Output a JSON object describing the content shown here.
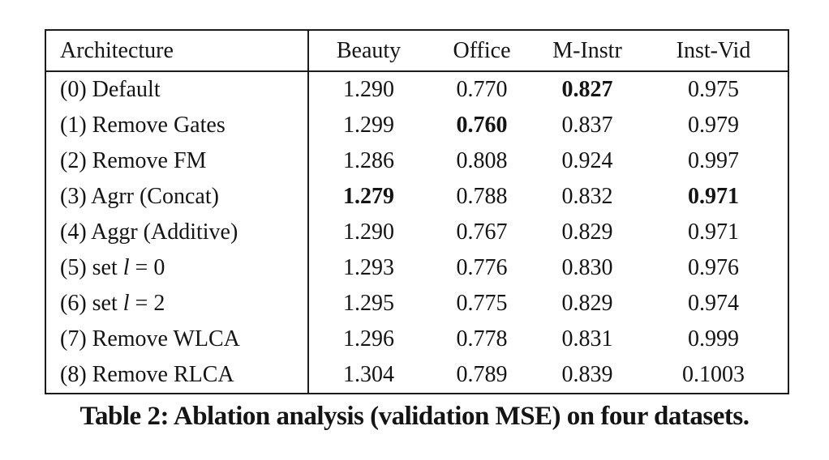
{
  "page": {
    "background_color": "#ffffff",
    "text_color": "#141414",
    "border_color": "#1c1c1c"
  },
  "caption": "Table 2: Ablation analysis (validation MSE) on four datasets.",
  "table": {
    "headers": {
      "architecture": "Architecture",
      "beauty": "Beauty",
      "office": "Office",
      "m_instr": "M-Instr",
      "inst_vid": "Inst-Vid"
    },
    "rows": [
      {
        "arch_pre": "(0) Default",
        "arch_var": "",
        "arch_post": "",
        "beauty": {
          "text": "1.290",
          "bold": false
        },
        "office": {
          "text": "0.770",
          "bold": false
        },
        "m_instr": {
          "text": "0.827",
          "bold": true
        },
        "inst_vid": {
          "text": "0.975",
          "bold": false
        }
      },
      {
        "arch_pre": "(1) Remove Gates",
        "arch_var": "",
        "arch_post": "",
        "beauty": {
          "text": "1.299",
          "bold": false
        },
        "office": {
          "text": "0.760",
          "bold": true
        },
        "m_instr": {
          "text": "0.837",
          "bold": false
        },
        "inst_vid": {
          "text": "0.979",
          "bold": false
        }
      },
      {
        "arch_pre": "(2) Remove FM",
        "arch_var": "",
        "arch_post": "",
        "beauty": {
          "text": "1.286",
          "bold": false
        },
        "office": {
          "text": "0.808",
          "bold": false
        },
        "m_instr": {
          "text": "0.924",
          "bold": false
        },
        "inst_vid": {
          "text": "0.997",
          "bold": false
        }
      },
      {
        "arch_pre": "(3) Agrr (Concat)",
        "arch_var": "",
        "arch_post": "",
        "beauty": {
          "text": "1.279",
          "bold": true
        },
        "office": {
          "text": "0.788",
          "bold": false
        },
        "m_instr": {
          "text": "0.832",
          "bold": false
        },
        "inst_vid": {
          "text": "0.971",
          "bold": true
        }
      },
      {
        "arch_pre": "(4) Aggr (Additive)",
        "arch_var": "",
        "arch_post": "",
        "beauty": {
          "text": "1.290",
          "bold": false
        },
        "office": {
          "text": "0.767",
          "bold": false
        },
        "m_instr": {
          "text": "0.829",
          "bold": false
        },
        "inst_vid": {
          "text": "0.971",
          "bold": false
        }
      },
      {
        "arch_pre": "(5) set ",
        "arch_var": "l",
        "arch_post": " = 0",
        "beauty": {
          "text": "1.293",
          "bold": false
        },
        "office": {
          "text": "0.776",
          "bold": false
        },
        "m_instr": {
          "text": "0.830",
          "bold": false
        },
        "inst_vid": {
          "text": "0.976",
          "bold": false
        }
      },
      {
        "arch_pre": "(6) set ",
        "arch_var": "l",
        "arch_post": " = 2",
        "beauty": {
          "text": "1.295",
          "bold": false
        },
        "office": {
          "text": "0.775",
          "bold": false
        },
        "m_instr": {
          "text": "0.829",
          "bold": false
        },
        "inst_vid": {
          "text": "0.974",
          "bold": false
        }
      },
      {
        "arch_pre": "(7) Remove WLCA",
        "arch_var": "",
        "arch_post": "",
        "beauty": {
          "text": "1.296",
          "bold": false
        },
        "office": {
          "text": "0.778",
          "bold": false
        },
        "m_instr": {
          "text": "0.831",
          "bold": false
        },
        "inst_vid": {
          "text": "0.999",
          "bold": false
        }
      },
      {
        "arch_pre": "(8) Remove RLCA",
        "arch_var": "",
        "arch_post": "",
        "beauty": {
          "text": "1.304",
          "bold": false
        },
        "office": {
          "text": "0.789",
          "bold": false
        },
        "m_instr": {
          "text": "0.839",
          "bold": false
        },
        "inst_vid": {
          "text": "0.1003",
          "bold": false
        }
      }
    ]
  }
}
